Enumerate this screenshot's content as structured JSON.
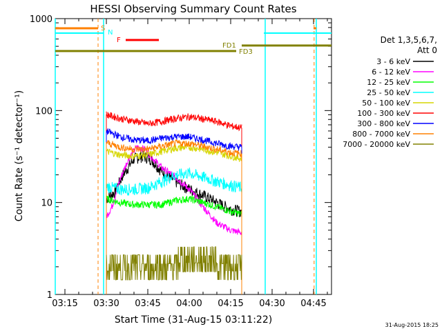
{
  "chart_data": {
    "type": "line",
    "title": "HESSI Observing Summary Count Rates",
    "xlabel": "Start Time (31-Aug-15 03:11:22)",
    "ylabel": "Count Rate (s⁻¹ detector⁻¹)",
    "y_scale": "log",
    "ylim": [
      1,
      1000
    ],
    "xlim_minutes": [
      "03:11",
      "04:50"
    ],
    "x_ticks": [
      "03:15",
      "03:30",
      "03:45",
      "04:00",
      "04:15",
      "04:30",
      "04:45"
    ],
    "y_ticks": [
      "1",
      "10",
      "100",
      "1000"
    ],
    "footer": "31-Aug-2015 18:25",
    "legend": {
      "header_line1": "Det 1,3,5,6,7,",
      "header_line2": "Att 0",
      "placement": "right"
    },
    "series": [
      {
        "name": "3 - 6 keV",
        "color": "#000000",
        "points": [
          [
            "03:30",
            11
          ],
          [
            "03:33",
            13
          ],
          [
            "03:36",
            20
          ],
          [
            "03:40",
            30
          ],
          [
            "03:43",
            32
          ],
          [
            "03:46",
            30
          ],
          [
            "03:50",
            22
          ],
          [
            "03:55",
            17
          ],
          [
            "04:00",
            14
          ],
          [
            "04:05",
            12
          ],
          [
            "04:10",
            10
          ],
          [
            "04:15",
            8.5
          ],
          [
            "04:19",
            8
          ]
        ]
      },
      {
        "name": "6 - 12 keV",
        "color": "#ff00ff",
        "points": [
          [
            "03:30",
            7
          ],
          [
            "03:32",
            9
          ],
          [
            "03:35",
            18
          ],
          [
            "03:38",
            30
          ],
          [
            "03:41",
            40
          ],
          [
            "03:44",
            38
          ],
          [
            "03:47",
            30
          ],
          [
            "03:50",
            24
          ],
          [
            "03:55",
            19
          ],
          [
            "04:00",
            14
          ],
          [
            "04:05",
            9
          ],
          [
            "04:10",
            6
          ],
          [
            "04:15",
            5
          ],
          [
            "04:19",
            4.7
          ]
        ]
      },
      {
        "name": "12 - 25 keV",
        "color": "#00ff00",
        "points": [
          [
            "03:30",
            11
          ],
          [
            "03:35",
            10
          ],
          [
            "03:40",
            9.5
          ],
          [
            "03:45",
            9.5
          ],
          [
            "03:50",
            9.5
          ],
          [
            "03:55",
            10.5
          ],
          [
            "04:00",
            11
          ],
          [
            "04:05",
            10
          ],
          [
            "04:10",
            9
          ],
          [
            "04:15",
            8
          ],
          [
            "04:19",
            7.5
          ]
        ]
      },
      {
        "name": "25 - 50 keV",
        "color": "#00ffff",
        "points": [
          [
            "03:30",
            15
          ],
          [
            "03:35",
            14
          ],
          [
            "03:40",
            14
          ],
          [
            "03:45",
            14.5
          ],
          [
            "03:50",
            17
          ],
          [
            "03:55",
            20
          ],
          [
            "04:00",
            21
          ],
          [
            "04:05",
            19
          ],
          [
            "04:10",
            17
          ],
          [
            "04:15",
            15.5
          ],
          [
            "04:19",
            14.5
          ]
        ]
      },
      {
        "name": "50 - 100 keV",
        "color": "#d6d600",
        "points": [
          [
            "03:30",
            36
          ],
          [
            "03:35",
            33
          ],
          [
            "03:40",
            32
          ],
          [
            "03:45",
            33
          ],
          [
            "03:50",
            36
          ],
          [
            "03:55",
            39
          ],
          [
            "04:00",
            40
          ],
          [
            "04:05",
            38
          ],
          [
            "04:10",
            35
          ],
          [
            "04:15",
            32
          ],
          [
            "04:19",
            30
          ]
        ]
      },
      {
        "name": "100 - 300 keV",
        "color": "#ff0000",
        "points": [
          [
            "03:30",
            91
          ],
          [
            "03:35",
            82
          ],
          [
            "03:40",
            77
          ],
          [
            "03:45",
            72
          ],
          [
            "03:50",
            76
          ],
          [
            "03:55",
            82
          ],
          [
            "04:00",
            86
          ],
          [
            "04:05",
            81
          ],
          [
            "04:10",
            76
          ],
          [
            "04:15",
            68
          ],
          [
            "04:19",
            65
          ]
        ]
      },
      {
        "name": "300 - 800 keV",
        "color": "#0000ff",
        "points": [
          [
            "03:30",
            60
          ],
          [
            "03:35",
            52
          ],
          [
            "03:40",
            48
          ],
          [
            "03:45",
            47
          ],
          [
            "03:50",
            50
          ],
          [
            "03:55",
            52
          ],
          [
            "04:00",
            52
          ],
          [
            "04:05",
            48
          ],
          [
            "04:10",
            44
          ],
          [
            "04:15",
            41
          ],
          [
            "04:19",
            40
          ]
        ]
      },
      {
        "name": "800 - 7000 keV",
        "color": "#ff8000",
        "points": [
          [
            "03:30",
            45
          ],
          [
            "03:35",
            40
          ],
          [
            "03:40",
            38
          ],
          [
            "03:45",
            38
          ],
          [
            "03:50",
            41
          ],
          [
            "03:55",
            44
          ],
          [
            "04:00",
            44
          ],
          [
            "04:05",
            41
          ],
          [
            "04:10",
            38
          ],
          [
            "04:15",
            35
          ],
          [
            "04:19",
            34
          ]
        ]
      },
      {
        "name": "7000 - 20000 keV",
        "color": "#808000",
        "points": [
          [
            "03:30",
            1.8
          ],
          [
            "03:40",
            1.9
          ],
          [
            "03:50",
            2.1
          ],
          [
            "04:00",
            2.2
          ],
          [
            "04:10",
            2.1
          ],
          [
            "04:19",
            2.0
          ]
        ]
      }
    ],
    "annotations": {
      "saa_label": "S",
      "night_label": "N",
      "flare_label": "F",
      "fd1_label": "FD1",
      "fd3_label": "FD3"
    }
  }
}
